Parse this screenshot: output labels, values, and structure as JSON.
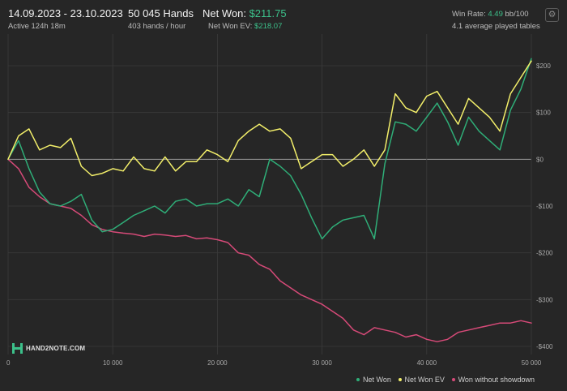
{
  "header": {
    "date_range": "14.09.2023 - 23.10.2023",
    "active": "Active 124h 18m",
    "hands": "50 045 Hands",
    "hands_per_hour": "403 hands / hour",
    "net_won_label": "Net Won:",
    "net_won_value": "$211.75",
    "net_won_ev_label": "Net Won  EV:",
    "net_won_ev_value": "$218.07",
    "win_rate_label": "Win Rate:",
    "win_rate_value": "4.49",
    "win_rate_unit": "bb/100",
    "avg_tables": "4.1 average played tables"
  },
  "settings_icon": "gear-icon",
  "logo": {
    "text": "HAND2NOTE.COM",
    "icon": "hand2note-logo-icon"
  },
  "colors": {
    "net_won": "#2fae78",
    "net_won_ev": "#f3ef6a",
    "won_without_showdown": "#d64a78",
    "zero_line": "#9a9a9a",
    "grid": "#3a3a3a"
  },
  "chart_data": {
    "type": "line",
    "title": "",
    "xlabel": "",
    "ylabel": "",
    "xlim": [
      0,
      50000
    ],
    "ylim": [
      -400,
      220
    ],
    "x_ticks": [
      {
        "value": 0,
        "label": "0"
      },
      {
        "value": 10000,
        "label": "10 000"
      },
      {
        "value": 20000,
        "label": "20 000"
      },
      {
        "value": 30000,
        "label": "30 000"
      },
      {
        "value": 40000,
        "label": "40 000"
      },
      {
        "value": 50000,
        "label": "50 000"
      }
    ],
    "y_ticks": [
      {
        "value": 200,
        "label": "$200"
      },
      {
        "value": 100,
        "label": "$100"
      },
      {
        "value": 0,
        "label": "$0"
      },
      {
        "value": -100,
        "label": "-$100"
      },
      {
        "value": -200,
        "label": "-$200"
      },
      {
        "value": -300,
        "label": "-$300"
      },
      {
        "value": -400,
        "label": "-$400"
      }
    ],
    "grid": true,
    "legend_position": "bottom-right",
    "x": [
      0,
      1000,
      2000,
      3000,
      4000,
      5000,
      6000,
      7000,
      8000,
      9000,
      10000,
      11000,
      12000,
      13000,
      14000,
      15000,
      16000,
      17000,
      18000,
      19000,
      20000,
      21000,
      22000,
      23000,
      24000,
      25000,
      26000,
      27000,
      28000,
      29000,
      30000,
      31000,
      32000,
      33000,
      34000,
      35000,
      36000,
      37000,
      38000,
      39000,
      40000,
      41000,
      42000,
      43000,
      44000,
      45000,
      46000,
      47000,
      48000,
      49000,
      50000
    ],
    "series": [
      {
        "name": "Net Won",
        "color": "#2fae78",
        "values": [
          0,
          40,
          -20,
          -70,
          -95,
          -100,
          -90,
          -75,
          -130,
          -155,
          -150,
          -135,
          -120,
          -110,
          -100,
          -115,
          -90,
          -85,
          -100,
          -95,
          -95,
          -85,
          -100,
          -65,
          -80,
          0,
          -15,
          -35,
          -75,
          -125,
          -170,
          -145,
          -130,
          -125,
          -120,
          -170,
          -10,
          80,
          75,
          60,
          90,
          120,
          80,
          30,
          90,
          60,
          40,
          20,
          105,
          150,
          215
        ]
      },
      {
        "name": "Net Won  EV",
        "color": "#f3ef6a",
        "values": [
          0,
          50,
          65,
          20,
          30,
          25,
          45,
          -15,
          -35,
          -30,
          -20,
          -25,
          5,
          -20,
          -25,
          5,
          -25,
          -5,
          -5,
          20,
          10,
          -5,
          40,
          60,
          75,
          60,
          65,
          45,
          -20,
          -5,
          10,
          10,
          -15,
          0,
          20,
          -15,
          20,
          140,
          110,
          100,
          135,
          145,
          110,
          75,
          130,
          110,
          90,
          60,
          140,
          175,
          210
        ]
      },
      {
        "name": "Won without showdown",
        "color": "#d64a78",
        "values": [
          0,
          -20,
          -60,
          -80,
          -95,
          -100,
          -105,
          -120,
          -140,
          -150,
          -155,
          -158,
          -160,
          -165,
          -160,
          -162,
          -165,
          -163,
          -170,
          -168,
          -172,
          -178,
          -200,
          -205,
          -225,
          -235,
          -260,
          -275,
          -290,
          -300,
          -310,
          -325,
          -340,
          -365,
          -375,
          -360,
          -365,
          -370,
          -380,
          -375,
          -385,
          -390,
          -385,
          -370,
          -365,
          -360,
          -355,
          -350,
          -350,
          -345,
          -350
        ]
      }
    ]
  }
}
